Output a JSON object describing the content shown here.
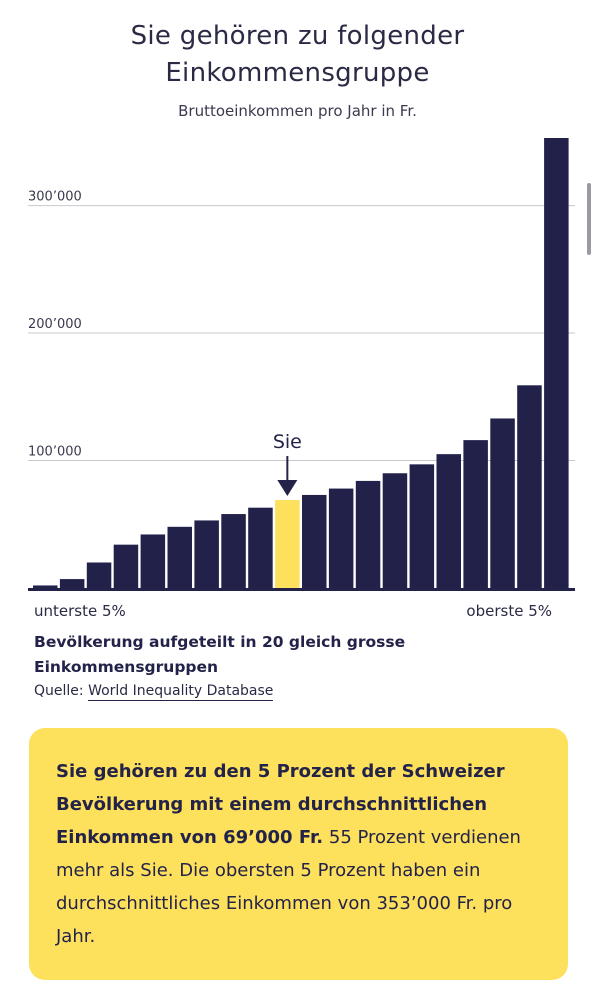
{
  "header": {
    "title_line1": "Sie gehören zu folgender",
    "title_line2": "Einkommensgruppe",
    "subtitle": "Bruttoeinkommen pro Jahr in Fr."
  },
  "chart_data": {
    "type": "bar",
    "categories": [
      "1",
      "2",
      "3",
      "4",
      "5",
      "6",
      "7",
      "8",
      "9",
      "10",
      "11",
      "12",
      "13",
      "14",
      "15",
      "16",
      "17",
      "18",
      "19",
      "20"
    ],
    "values": [
      2000,
      7000,
      20000,
      34000,
      42000,
      48000,
      53000,
      58000,
      63000,
      69000,
      73000,
      78000,
      84000,
      90000,
      97000,
      105000,
      116000,
      133000,
      159000,
      353000
    ],
    "highlight_index": 9,
    "highlight_label": "Sie",
    "ylim": [
      0,
      353000
    ],
    "y_ticks": [
      100000,
      200000,
      300000
    ],
    "y_tick_labels": [
      "100’000",
      "200’000",
      "300’000"
    ],
    "x_start_label": "unterste 5%",
    "x_end_label": "oberste 5%",
    "grid": true,
    "colors": {
      "bar": "#21214a",
      "highlight": "#fde05c",
      "grid": "#c8c8d0"
    }
  },
  "caption": {
    "line1": "Bevölkerung aufgeteilt in 20 gleich grosse",
    "line2": "Einkommensgruppen"
  },
  "source": {
    "label": "Quelle: ",
    "link": "World Inequality Database"
  },
  "info_box": {
    "bold_text": "Sie gehören zu den 5 Prozent der Schweizer Bevölkerung mit einem durchschnittlichen Einkommen von 69’000 Fr.",
    "text": " 55 Prozent verdienen mehr als Sie. Die obersten 5 Prozent haben ein durchschnittliches Einkommen von 353’000 Fr. pro Jahr.",
    "background": "#fde05c"
  }
}
